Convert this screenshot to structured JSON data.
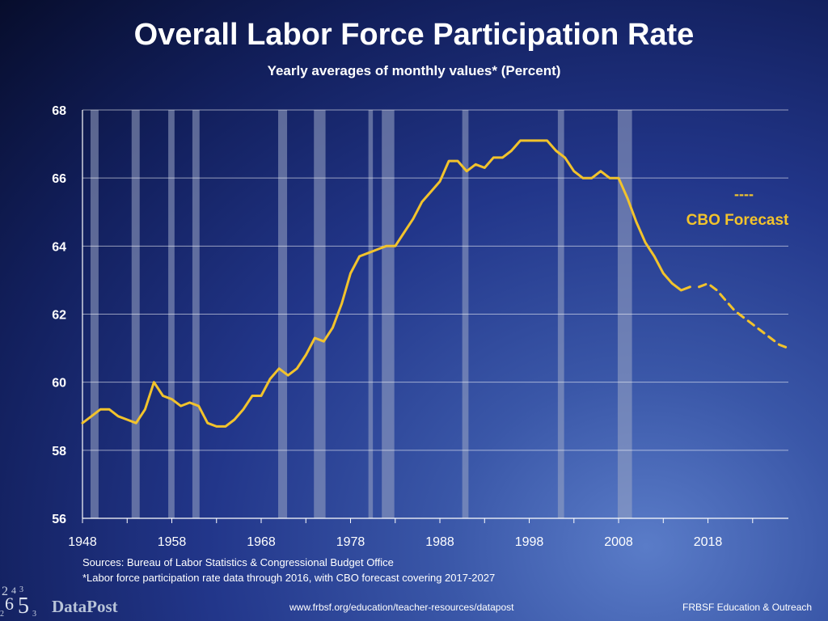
{
  "title": "Overall Labor Force Participation Rate",
  "subtitle": "Yearly averages of monthly values* (Percent)",
  "sources_line1": "Sources: Bureau of Labor Statistics & Congressional Budget Office",
  "sources_line2": "*Labor force participation rate data through 2016, with CBO forecast covering 2017-2027",
  "footer_url": "www.frbsf.org/education/teacher-resources/datapost",
  "footer_org": "FRBSF Education & Outreach",
  "logo_text": "DataPost",
  "logo_digits": [
    "2",
    "4",
    "3",
    "6",
    "5",
    "2",
    "3"
  ],
  "colors": {
    "line": "#f2c32c",
    "recession": "#9aa6c4",
    "grid": "#ffffff",
    "forecast_label": "#f2c32c"
  },
  "chart_data": {
    "type": "line",
    "title": "Overall Labor Force Participation Rate",
    "subtitle": "Yearly averages of monthly values* (Percent)",
    "xlabel": "",
    "ylabel": "",
    "ylim": [
      56,
      68
    ],
    "xlim": [
      1948,
      2027
    ],
    "grid": true,
    "y_ticks": [
      56,
      58,
      60,
      62,
      64,
      66,
      68
    ],
    "x_ticks": [
      1948,
      1958,
      1968,
      1978,
      1988,
      1998,
      2008,
      2018
    ],
    "x_tick_labels": [
      "1948",
      "1958",
      "1968",
      "1978",
      "1988",
      "1998",
      "2008",
      "2018"
    ],
    "forecast_label": "CBO Forecast",
    "forecast_legend_marker": "----",
    "recessions": [
      [
        1948.9,
        1949.8
      ],
      [
        1953.5,
        1954.4
      ],
      [
        1957.6,
        1958.3
      ],
      [
        1960.3,
        1961.1
      ],
      [
        1969.9,
        1970.9
      ],
      [
        1973.9,
        1975.2
      ],
      [
        1980.0,
        1980.5
      ],
      [
        1981.5,
        1982.9
      ],
      [
        1990.5,
        1991.2
      ],
      [
        2001.2,
        2001.9
      ],
      [
        2007.9,
        2009.5
      ]
    ],
    "series": [
      {
        "style": "solid",
        "x": [
          1948,
          1949,
          1950,
          1951,
          1952,
          1953,
          1954,
          1955,
          1956,
          1957,
          1958,
          1959,
          1960,
          1961,
          1962,
          1963,
          1964,
          1965,
          1966,
          1967,
          1968,
          1969,
          1970,
          1971,
          1972,
          1973,
          1974,
          1975,
          1976,
          1977,
          1978,
          1979,
          1980,
          1981,
          1982,
          1983,
          1984,
          1985,
          1986,
          1987,
          1988,
          1989,
          1990,
          1991,
          1992,
          1993,
          1994,
          1995,
          1996,
          1997,
          1998,
          1999,
          2000,
          2001,
          2002,
          2003,
          2004,
          2005,
          2006,
          2007,
          2008,
          2009,
          2010,
          2011,
          2012,
          2013,
          2014,
          2015,
          2016
        ],
        "values": [
          58.8,
          59.0,
          59.2,
          59.2,
          59.0,
          58.9,
          58.8,
          59.2,
          60.0,
          59.6,
          59.5,
          59.3,
          59.4,
          59.3,
          58.8,
          58.7,
          58.7,
          58.9,
          59.2,
          59.6,
          59.6,
          60.1,
          60.4,
          60.2,
          60.4,
          60.8,
          61.3,
          61.2,
          61.6,
          62.3,
          63.2,
          63.7,
          63.8,
          63.9,
          64.0,
          64.0,
          64.4,
          64.8,
          65.3,
          65.6,
          65.9,
          66.5,
          66.5,
          66.2,
          66.4,
          66.3,
          66.6,
          66.6,
          66.8,
          67.1,
          67.1,
          67.1,
          67.1,
          66.8,
          66.6,
          66.2,
          66.0,
          66.0,
          66.2,
          66.0,
          66.0,
          65.4,
          64.7,
          64.1,
          63.7,
          63.2,
          62.9,
          62.7,
          62.8
        ]
      },
      {
        "style": "dashed",
        "x": [
          2017,
          2018,
          2019,
          2020,
          2021,
          2022,
          2023,
          2024,
          2025,
          2026,
          2027
        ],
        "values": [
          62.8,
          62.9,
          62.7,
          62.4,
          62.1,
          61.9,
          61.7,
          61.5,
          61.3,
          61.1,
          61.0
        ]
      }
    ]
  }
}
